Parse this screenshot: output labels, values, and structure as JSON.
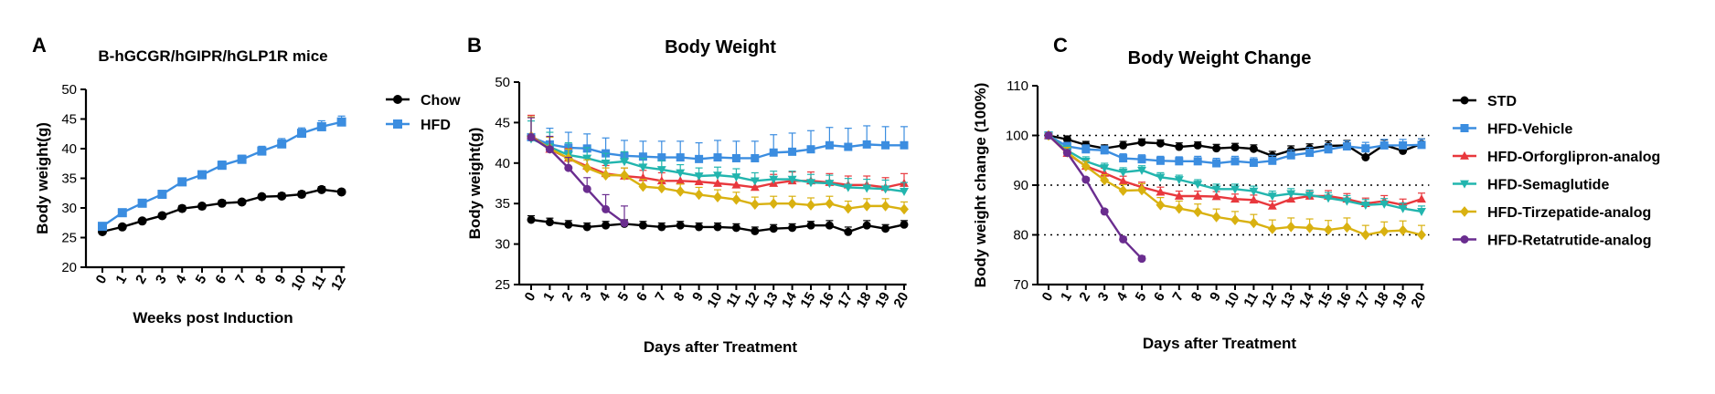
{
  "colors": {
    "black": "#000000",
    "blue": "#3b8de0",
    "red": "#e8383d",
    "teal": "#22b5ae",
    "gold": "#d9b110",
    "purple": "#6a2d8f"
  },
  "chart_data": [
    {
      "panel_letter": "A",
      "type": "line",
      "title": "B-hGCGR/hGIPR/hGLP1R mice",
      "xlabel": "Weeks post Induction",
      "ylabel": "Body weight(g)",
      "x": [
        0,
        1,
        2,
        3,
        4,
        5,
        6,
        7,
        8,
        9,
        10,
        11,
        12
      ],
      "ylim": [
        20,
        50
      ],
      "yticks": [
        20,
        25,
        30,
        35,
        40,
        45,
        50
      ],
      "legend_position": "right",
      "series": [
        {
          "name": "Chow",
          "color": "#000000",
          "marker": "circle",
          "values": [
            26.0,
            26.8,
            27.8,
            28.7,
            29.9,
            30.3,
            30.8,
            31.0,
            31.9,
            32.0,
            32.3,
            33.1,
            32.7
          ],
          "err": [
            0.4,
            0.4,
            0.4,
            0.4,
            0.5,
            0.4,
            0.5,
            0.4,
            0.4,
            0.5,
            0.5,
            0.5,
            0.4
          ]
        },
        {
          "name": "HFD",
          "color": "#3b8de0",
          "marker": "square",
          "values": [
            26.9,
            29.2,
            30.8,
            32.3,
            34.4,
            35.6,
            37.2,
            38.2,
            39.6,
            40.8,
            42.6,
            43.7,
            44.5
          ],
          "err": [
            0.4,
            0.5,
            0.5,
            0.6,
            0.6,
            0.6,
            0.7,
            0.7,
            0.8,
            0.9,
            0.9,
            1.0,
            1.0
          ]
        }
      ]
    },
    {
      "panel_letter": "B",
      "type": "line",
      "title": "Body Weight",
      "xlabel": "Days after Treatment",
      "ylabel": "Body weight(g)",
      "x": [
        0,
        1,
        2,
        3,
        4,
        5,
        6,
        7,
        8,
        9,
        10,
        11,
        12,
        13,
        14,
        15,
        16,
        17,
        18,
        19,
        20
      ],
      "ylim": [
        25,
        50
      ],
      "yticks": [
        25,
        30,
        35,
        40,
        45,
        50
      ],
      "series": [
        {
          "color": "#000000",
          "marker": "circle",
          "values": [
            33.0,
            32.7,
            32.4,
            32.1,
            32.3,
            32.5,
            32.3,
            32.1,
            32.3,
            32.1,
            32.1,
            32.0,
            31.6,
            31.9,
            32.0,
            32.3,
            32.3,
            31.5,
            32.3,
            31.9,
            32.4
          ],
          "err": [
            0.5,
            0.5,
            0.5,
            0.5,
            0.5,
            0.5,
            0.5,
            0.5,
            0.5,
            0.5,
            0.5,
            0.5,
            0.5,
            0.5,
            0.5,
            0.5,
            0.6,
            0.6,
            0.6,
            0.5,
            0.5
          ]
        },
        {
          "color": "#3b8de0",
          "marker": "square",
          "values": [
            43.2,
            42.3,
            41.9,
            41.8,
            41.2,
            40.9,
            40.8,
            40.7,
            40.7,
            40.5,
            40.7,
            40.6,
            40.6,
            41.3,
            41.4,
            41.7,
            42.2,
            42.0,
            42.3,
            42.2,
            42.2
          ],
          "err": [
            2.5,
            2.0,
            1.9,
            1.8,
            1.9,
            1.9,
            1.9,
            2.0,
            2.0,
            2.0,
            2.1,
            2.1,
            2.1,
            2.2,
            2.3,
            2.3,
            2.2,
            2.3,
            2.3,
            2.3,
            2.3
          ]
        },
        {
          "color": "#e8383d",
          "marker": "triangle",
          "values": [
            43.4,
            41.7,
            40.6,
            39.6,
            38.7,
            38.4,
            38.2,
            37.8,
            37.8,
            37.7,
            37.5,
            37.3,
            37.0,
            37.5,
            37.8,
            37.8,
            37.6,
            37.3,
            37.3,
            37.0,
            37.5
          ],
          "err": [
            2.5,
            1.5,
            1.2,
            1.0,
            1.0,
            1.0,
            0.9,
            1.0,
            1.0,
            1.0,
            1.0,
            1.0,
            1.0,
            1.1,
            1.1,
            1.1,
            1.1,
            1.1,
            1.1,
            1.2,
            1.2
          ]
        },
        {
          "color": "#22b5ae",
          "marker": "triangle-down",
          "values": [
            43.0,
            42.0,
            41.0,
            40.6,
            40.0,
            40.2,
            39.5,
            39.2,
            38.8,
            38.4,
            38.5,
            38.3,
            37.8,
            38.0,
            38.0,
            37.6,
            37.5,
            37.0,
            36.9,
            36.8,
            36.5
          ],
          "err": [
            2.2,
            1.8,
            1.5,
            1.3,
            1.2,
            1.2,
            1.1,
            1.1,
            1.0,
            1.0,
            1.0,
            1.0,
            1.0,
            1.0,
            1.0,
            1.0,
            1.0,
            1.1,
            1.1,
            1.1,
            1.1
          ]
        },
        {
          "color": "#d9b110",
          "marker": "diamond",
          "values": [
            43.3,
            41.8,
            40.6,
            39.4,
            38.5,
            38.5,
            37.1,
            36.9,
            36.5,
            36.1,
            35.8,
            35.5,
            34.9,
            35.0,
            35.0,
            34.8,
            35.0,
            34.4,
            34.7,
            34.7,
            34.3
          ],
          "err": [
            2.4,
            1.4,
            1.1,
            1.0,
            0.9,
            0.9,
            0.9,
            0.9,
            0.9,
            0.9,
            0.9,
            0.9,
            0.9,
            0.9,
            0.9,
            0.9,
            0.9,
            0.9,
            0.9,
            0.9,
            0.9
          ]
        },
        {
          "color": "#6a2d8f",
          "marker": "circle",
          "x": [
            0,
            1,
            2,
            3,
            4,
            5
          ],
          "values": [
            43.2,
            41.7,
            39.4,
            36.8,
            34.3,
            32.6
          ],
          "err": [
            2.4,
            1.6,
            1.3,
            1.4,
            1.8,
            2.1
          ]
        }
      ]
    },
    {
      "panel_letter": "C",
      "type": "line",
      "title": "Body Weight Change",
      "xlabel": "Days after Treatment",
      "ylabel": "Body weight change (100%)",
      "x": [
        0,
        1,
        2,
        3,
        4,
        5,
        6,
        7,
        8,
        9,
        10,
        11,
        12,
        13,
        14,
        15,
        16,
        17,
        18,
        19,
        20
      ],
      "ylim": [
        70,
        110
      ],
      "yticks": [
        70,
        80,
        90,
        100,
        110
      ],
      "reference_lines": [
        100,
        90,
        80
      ],
      "legend_position": "right",
      "series": [
        {
          "name": "STD",
          "color": "#000000",
          "marker": "circle",
          "values": [
            100.0,
            99.2,
            98.1,
            97.4,
            98.0,
            98.6,
            98.4,
            97.7,
            98.0,
            97.4,
            97.6,
            97.3,
            95.9,
            97.0,
            97.4,
            97.9,
            98.0,
            95.6,
            98.1,
            96.9,
            98.3
          ],
          "err": [
            0.5,
            0.7,
            0.7,
            0.7,
            0.8,
            0.7,
            0.7,
            0.8,
            0.7,
            0.8,
            0.8,
            0.8,
            0.9,
            0.9,
            0.9,
            1.0,
            1.0,
            1.1,
            1.0,
            1.0,
            1.0
          ]
        },
        {
          "name": "HFD-Vehicle",
          "color": "#3b8de0",
          "marker": "square",
          "values": [
            100.0,
            97.8,
            97.2,
            97.0,
            95.4,
            95.2,
            94.9,
            94.8,
            94.8,
            94.4,
            94.8,
            94.5,
            94.9,
            96.0,
            96.5,
            97.2,
            97.8,
            97.4,
            98.0,
            98.0,
            98.1
          ],
          "err": [
            0.5,
            0.8,
            0.9,
            0.9,
            0.9,
            0.9,
            0.9,
            0.9,
            1.0,
            1.0,
            1.0,
            1.0,
            1.1,
            1.1,
            1.1,
            1.1,
            1.1,
            1.2,
            1.2,
            1.2,
            1.2
          ]
        },
        {
          "name": "HFD-Orforglipron-analog",
          "color": "#e8383d",
          "marker": "triangle",
          "values": [
            100.0,
            96.4,
            93.8,
            92.4,
            90.8,
            89.6,
            88.6,
            87.8,
            87.8,
            87.7,
            87.2,
            87.0,
            85.8,
            87.2,
            87.8,
            87.8,
            87.2,
            86.3,
            86.8,
            86.0,
            87.2
          ],
          "err": [
            0.5,
            1.0,
            1.0,
            1.0,
            1.0,
            1.0,
            1.0,
            1.0,
            1.0,
            1.0,
            1.0,
            1.0,
            1.0,
            1.1,
            1.1,
            1.1,
            1.1,
            1.1,
            1.1,
            1.2,
            1.2
          ]
        },
        {
          "name": "HFD-Semaglutide",
          "color": "#22b5ae",
          "marker": "triangle-down",
          "values": [
            100.0,
            97.0,
            94.8,
            93.5,
            92.6,
            93.0,
            91.6,
            91.1,
            90.2,
            89.2,
            89.2,
            88.8,
            87.8,
            88.3,
            88.0,
            87.4,
            86.8,
            86.0,
            86.2,
            85.3,
            84.7
          ],
          "err": [
            0.5,
            0.9,
            0.9,
            0.9,
            0.9,
            0.9,
            0.9,
            0.9,
            0.9,
            1.0,
            1.0,
            1.0,
            1.0,
            1.0,
            1.0,
            1.1,
            1.1,
            1.1,
            1.1,
            1.1,
            1.1
          ]
        },
        {
          "name": "HFD-Tirzepatide-analog",
          "color": "#d9b110",
          "marker": "diamond",
          "values": [
            100.0,
            96.6,
            93.8,
            91.0,
            88.9,
            89.0,
            86.0,
            85.3,
            84.6,
            83.6,
            83.0,
            82.4,
            81.2,
            81.6,
            81.4,
            81.0,
            81.5,
            80.0,
            80.7,
            80.9,
            80.0
          ],
          "err": [
            0.5,
            1.0,
            1.0,
            1.1,
            1.2,
            1.3,
            1.5,
            1.5,
            1.6,
            1.6,
            1.7,
            1.7,
            1.8,
            1.8,
            1.8,
            1.9,
            1.9,
            1.9,
            1.9,
            1.9,
            1.9
          ]
        },
        {
          "name": "HFD-Retatrutide-analog",
          "color": "#6a2d8f",
          "marker": "circle",
          "x": [
            0,
            1,
            2,
            3,
            4,
            5
          ],
          "values": [
            100.0,
            96.5,
            91.1,
            84.7,
            79.1,
            75.2
          ],
          "err": [
            0.3,
            0.4,
            0.4,
            0.4,
            0.5,
            0.5
          ]
        }
      ]
    }
  ]
}
